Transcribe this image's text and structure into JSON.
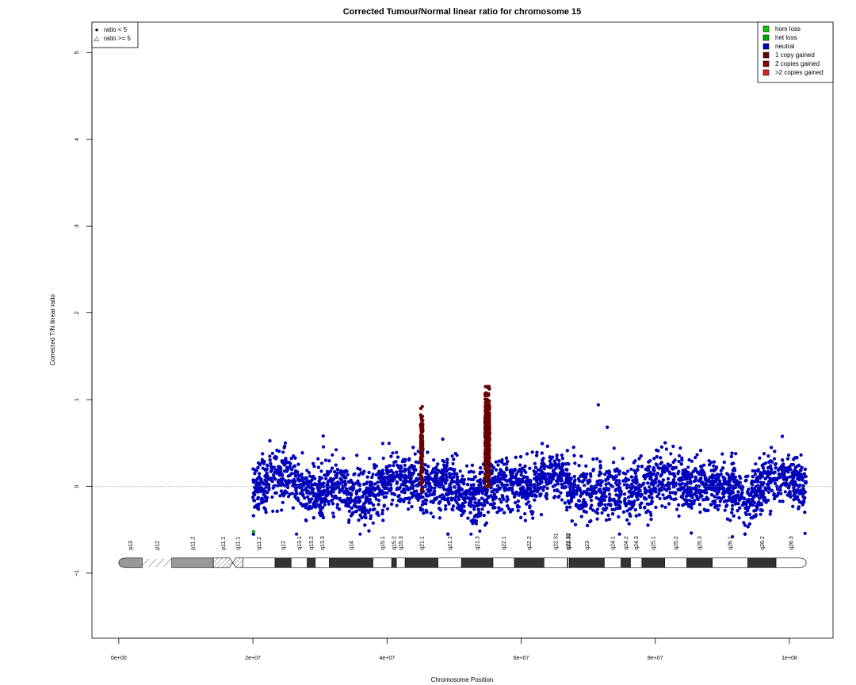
{
  "chart_data": {
    "type": "scatter",
    "title": "Corrected Tumour/Normal linear ratio for chromosome  15",
    "xlabel": "Chromosome Position",
    "ylabel": "Corrected T/N linear ratio",
    "xlim": [
      -4000000,
      106500000
    ],
    "ylim": [
      -1.75,
      5.35
    ],
    "x_ticks": [
      {
        "value": 0,
        "label": "0e+00"
      },
      {
        "value": 20000000,
        "label": "2e+07"
      },
      {
        "value": 40000000,
        "label": "4e+07"
      },
      {
        "value": 60000000,
        "label": "6e+07"
      },
      {
        "value": 80000000,
        "label": "8e+07"
      },
      {
        "value": 100000000,
        "label": "1e+08"
      }
    ],
    "y_ticks": [
      {
        "value": -1,
        "label": "−1"
      },
      {
        "value": 0,
        "label": "0"
      },
      {
        "value": 1,
        "label": "1"
      },
      {
        "value": 2,
        "label": "2"
      },
      {
        "value": 3,
        "label": "3"
      },
      {
        "value": 4,
        "label": "4"
      },
      {
        "value": 5,
        "label": "5"
      }
    ],
    "reference_line_y": 0,
    "shape_legend": {
      "placement": "top-left",
      "entries": [
        {
          "symbol": "●",
          "label": "ratio < 5"
        },
        {
          "symbol": "△",
          "label": "ratio >= 5"
        }
      ]
    },
    "color_legend": {
      "placement": "top-right",
      "entries": [
        {
          "label": "hom loss",
          "color": "#00CC00"
        },
        {
          "label": "het loss",
          "color": "#00AA00"
        },
        {
          "label": "neutral",
          "color": "#0000BB"
        },
        {
          "label": "1 copy gained",
          "color": "#660000"
        },
        {
          "label": "2 copies gained",
          "color": "#8B0000"
        },
        {
          "label": ">2 copies gained",
          "color": "#DD2222"
        }
      ]
    },
    "series": [
      {
        "name": "neutral",
        "color": "#0000BB",
        "x_range": [
          20000000,
          102500000
        ],
        "y_center": 0,
        "y_spread": 0.28
      },
      {
        "name": "1 copy gained",
        "color": "#660000",
        "segments": [
          {
            "x_range": [
              45000000,
              45350000
            ],
            "y_range": [
              -0.05,
              0.92
            ]
          },
          {
            "x_range": [
              54600000,
              55300000
            ],
            "y_range": [
              0.0,
              1.15
            ]
          }
        ]
      },
      {
        "name": "het loss",
        "color": "#00AA00",
        "points": [
          {
            "x": 20100000,
            "y": -0.52
          }
        ]
      }
    ],
    "ideogram": {
      "y": -0.88,
      "bands": [
        {
          "name": "p13",
          "start": 0,
          "end": 3500000,
          "stain": "gvar"
        },
        {
          "name": "p12",
          "start": 3500000,
          "end": 7900000,
          "stain": "stalk"
        },
        {
          "name": "p11.2",
          "start": 7900000,
          "end": 14100000,
          "stain": "gvar"
        },
        {
          "name": "p11.1",
          "start": 14100000,
          "end": 17000000,
          "stain": "acen"
        },
        {
          "name": "q11.1",
          "start": 17000000,
          "end": 18500000,
          "stain": "acen"
        },
        {
          "name": "q11.2",
          "start": 18500000,
          "end": 23300000,
          "stain": "gneg"
        },
        {
          "name": "q12",
          "start": 23300000,
          "end": 25700000,
          "stain": "gpos50"
        },
        {
          "name": "q13.1",
          "start": 25700000,
          "end": 28100000,
          "stain": "gneg"
        },
        {
          "name": "q13.2",
          "start": 28100000,
          "end": 29300000,
          "stain": "gpos50"
        },
        {
          "name": "q13.3",
          "start": 29300000,
          "end": 31400000,
          "stain": "gneg"
        },
        {
          "name": "q14",
          "start": 31400000,
          "end": 37900000,
          "stain": "gpos75"
        },
        {
          "name": "q15.1",
          "start": 37900000,
          "end": 40700000,
          "stain": "gneg"
        },
        {
          "name": "q15.2",
          "start": 40700000,
          "end": 41400000,
          "stain": "gpos25"
        },
        {
          "name": "q15.3",
          "start": 41400000,
          "end": 42700000,
          "stain": "gneg"
        },
        {
          "name": "q21.1",
          "start": 42700000,
          "end": 47600000,
          "stain": "gpos75"
        },
        {
          "name": "q21.2",
          "start": 47600000,
          "end": 51100000,
          "stain": "gneg"
        },
        {
          "name": "q21.3",
          "start": 51100000,
          "end": 55800000,
          "stain": "gpos75"
        },
        {
          "name": "q22.1",
          "start": 55800000,
          "end": 59000000,
          "stain": "gneg"
        },
        {
          "name": "q22.2",
          "start": 59000000,
          "end": 63400000,
          "stain": "gpos25"
        },
        {
          "name": "q22.31",
          "start": 63400000,
          "end": 66900000,
          "stain": "gneg"
        },
        {
          "name": "q22.32",
          "start": 66900000,
          "end": 67000000,
          "stain": "gpos25"
        },
        {
          "name": "q22.33",
          "start": 67000000,
          "end": 67200000,
          "stain": "gneg"
        },
        {
          "name": "q23",
          "start": 67200000,
          "end": 72400000,
          "stain": "gpos25"
        },
        {
          "name": "q24.1",
          "start": 72400000,
          "end": 74900000,
          "stain": "gneg"
        },
        {
          "name": "q24.2",
          "start": 74900000,
          "end": 76300000,
          "stain": "gpos25"
        },
        {
          "name": "q24.3",
          "start": 76300000,
          "end": 78000000,
          "stain": "gneg"
        },
        {
          "name": "q25.1",
          "start": 78000000,
          "end": 81400000,
          "stain": "gpos50"
        },
        {
          "name": "q25.2",
          "start": 81400000,
          "end": 84700000,
          "stain": "gneg"
        },
        {
          "name": "q25.3",
          "start": 84700000,
          "end": 88500000,
          "stain": "gpos50"
        },
        {
          "name": "q26.1",
          "start": 88500000,
          "end": 93800000,
          "stain": "gneg"
        },
        {
          "name": "q26.2",
          "start": 93800000,
          "end": 98000000,
          "stain": "gpos50"
        },
        {
          "name": "q26.3",
          "start": 98000000,
          "end": 102500000,
          "stain": "gneg"
        }
      ]
    }
  }
}
